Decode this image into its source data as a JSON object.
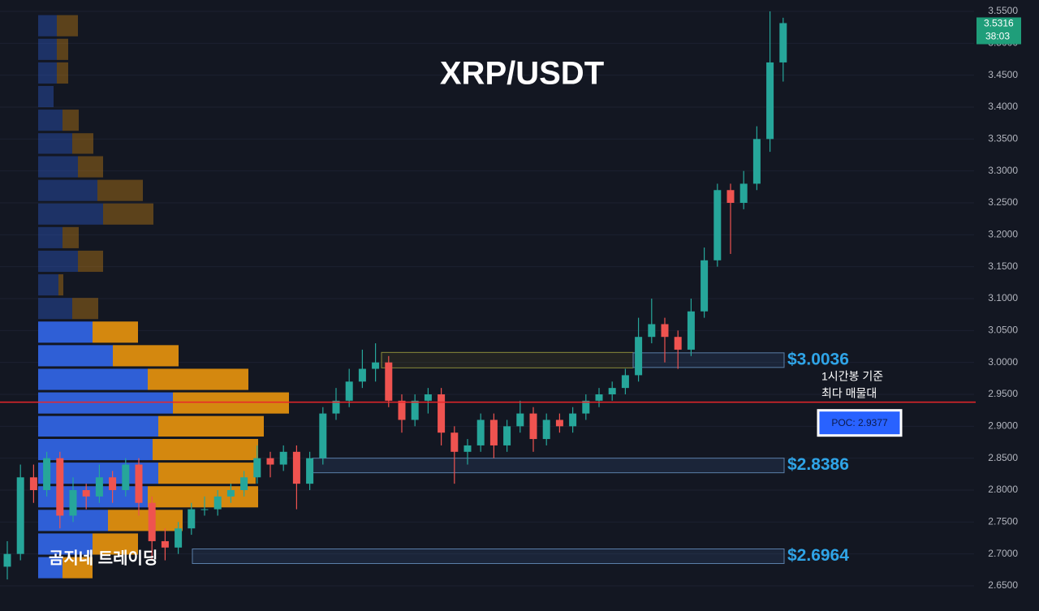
{
  "chart_data": {
    "type": "candlestick",
    "title": "XRP/USDT",
    "watermark": "곰지네 트레이딩",
    "ylim": [
      2.6106,
      3.5678
    ],
    "yticks": [
      {
        "value": 2.65,
        "label": "2.6500"
      },
      {
        "value": 2.7,
        "label": "2.7000"
      },
      {
        "value": 2.75,
        "label": "2.7500"
      },
      {
        "value": 2.8,
        "label": "2.8000"
      },
      {
        "value": 2.85,
        "label": "2.8500"
      },
      {
        "value": 2.9,
        "label": "2.9000"
      },
      {
        "value": 2.95,
        "label": "2.9500"
      },
      {
        "value": 3.0,
        "label": "3.0000"
      },
      {
        "value": 3.05,
        "label": "3.0500"
      },
      {
        "value": 3.1,
        "label": "3.1000"
      },
      {
        "value": 3.15,
        "label": "3.1500"
      },
      {
        "value": 3.2,
        "label": "3.2000"
      },
      {
        "value": 3.25,
        "label": "3.2500"
      },
      {
        "value": 3.3,
        "label": "3.3000"
      },
      {
        "value": 3.35,
        "label": "3.3500"
      },
      {
        "value": 3.4,
        "label": "3.4000"
      },
      {
        "value": 3.45,
        "label": "3.4500"
      },
      {
        "value": 3.5,
        "label": "3.5000"
      },
      {
        "value": 3.55,
        "label": "3.5500"
      }
    ],
    "grid": true,
    "up_color": "#26a69a",
    "down_color": "#ef5350",
    "open": [
      2.68,
      2.7,
      2.82,
      2.8,
      2.85,
      2.76,
      2.8,
      2.79,
      2.82,
      2.8,
      2.84,
      2.78,
      2.72,
      2.71,
      2.74,
      2.77,
      2.77,
      2.79,
      2.8,
      2.82,
      2.85,
      2.84,
      2.86,
      2.81,
      2.85,
      2.92,
      2.94,
      2.97,
      2.99,
      3.0,
      2.94,
      2.91,
      2.94,
      2.95,
      2.89,
      2.86,
      2.87,
      2.91,
      2.87,
      2.9,
      2.92,
      2.88,
      2.91,
      2.9,
      2.92,
      2.94,
      2.95,
      2.96,
      2.98,
      3.04,
      3.06,
      3.04,
      3.02,
      3.08,
      3.16,
      3.27,
      3.25,
      3.28,
      3.35,
      3.47
    ],
    "high": [
      2.72,
      2.84,
      2.84,
      2.86,
      2.86,
      2.82,
      2.81,
      2.84,
      2.83,
      2.85,
      2.85,
      2.79,
      2.74,
      2.75,
      2.78,
      2.79,
      2.8,
      2.81,
      2.83,
      2.87,
      2.86,
      2.87,
      2.87,
      2.86,
      2.93,
      2.96,
      2.99,
      3.02,
      3.03,
      3.01,
      2.95,
      2.95,
      2.96,
      2.96,
      2.9,
      2.88,
      2.92,
      2.92,
      2.91,
      2.94,
      2.93,
      2.92,
      2.92,
      2.93,
      2.95,
      2.96,
      2.97,
      2.99,
      3.07,
      3.1,
      3.07,
      3.05,
      3.1,
      3.18,
      3.28,
      3.28,
      3.3,
      3.37,
      3.55,
      3.54
    ],
    "low": [
      2.66,
      2.69,
      2.78,
      2.79,
      2.74,
      2.75,
      2.77,
      2.78,
      2.78,
      2.79,
      2.76,
      2.69,
      2.69,
      2.7,
      2.73,
      2.76,
      2.76,
      2.78,
      2.79,
      2.81,
      2.82,
      2.83,
      2.77,
      2.8,
      2.84,
      2.91,
      2.93,
      2.96,
      2.97,
      2.93,
      2.89,
      2.9,
      2.92,
      2.87,
      2.81,
      2.84,
      2.86,
      2.85,
      2.86,
      2.89,
      2.86,
      2.87,
      2.89,
      2.89,
      2.91,
      2.93,
      2.94,
      2.95,
      2.97,
      3.03,
      3.0,
      2.99,
      3.01,
      3.07,
      3.15,
      3.17,
      3.24,
      3.27,
      3.33,
      3.44
    ],
    "close": [
      2.7,
      2.82,
      2.8,
      2.85,
      2.76,
      2.8,
      2.79,
      2.82,
      2.8,
      2.84,
      2.78,
      2.72,
      2.71,
      2.74,
      2.77,
      2.77,
      2.79,
      2.8,
      2.82,
      2.85,
      2.84,
      2.86,
      2.81,
      2.85,
      2.92,
      2.94,
      2.97,
      2.99,
      3.0,
      2.94,
      2.91,
      2.94,
      2.95,
      2.89,
      2.86,
      2.87,
      2.91,
      2.87,
      2.9,
      2.92,
      2.88,
      2.91,
      2.9,
      2.92,
      2.94,
      2.95,
      2.96,
      2.98,
      3.04,
      3.06,
      3.04,
      3.02,
      3.08,
      3.16,
      3.27,
      3.25,
      3.28,
      3.35,
      3.47,
      3.5316
    ],
    "countdown": "38:03",
    "volume_profile": {
      "bins": [
        2.66,
        2.697,
        2.734,
        2.771,
        2.808,
        2.845,
        2.882,
        2.918,
        2.955,
        2.992,
        3.029,
        3.066,
        3.103,
        3.14,
        3.177,
        3.214,
        3.251,
        3.288,
        3.325,
        3.361,
        3.398,
        3.435,
        3.472,
        3.509,
        3.546
      ],
      "buy": [
        30,
        67,
        86,
        135,
        148,
        141,
        148,
        166,
        135,
        92,
        67,
        42,
        25,
        49,
        30,
        80,
        73,
        49,
        42,
        30,
        19,
        23,
        23,
        23
      ],
      "sell": [
        37,
        56,
        92,
        136,
        120,
        130,
        130,
        143,
        124,
        81,
        56,
        32,
        6,
        31,
        20,
        62,
        56,
        31,
        26,
        20,
        0,
        14,
        14,
        26
      ],
      "buy_color": "#2f5fd6",
      "sell_color": "#d4880f",
      "active_below": 3.066
    },
    "zones": [
      {
        "value": 3.0036,
        "label": "$3.0036"
      },
      {
        "value": 2.8386,
        "label": "$2.8386"
      },
      {
        "value": 2.6964,
        "label": "$2.6964"
      }
    ],
    "poc": {
      "value": 2.9377,
      "label": "POC: 2.9377",
      "note": [
        "1시간봉 기준",
        "최다 매물대"
      ]
    }
  }
}
